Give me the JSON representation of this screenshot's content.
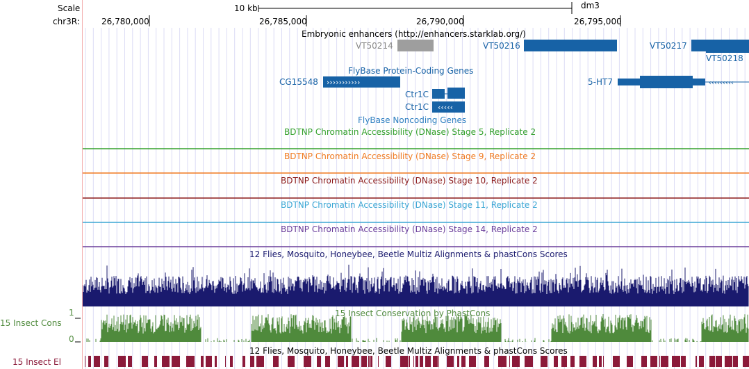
{
  "colors": {
    "gene_blue": "#1762a6",
    "enhancer_gray": "#9e9e9e",
    "stage5": "#33a02c",
    "stage9": "#f07a20",
    "stage10": "#8b1a1a",
    "stage11": "#3aa6d4",
    "stage14": "#6a3d9a",
    "multiz": "#1a1a6e",
    "phastcons": "#4f8a3c",
    "elements": "#8b1a3a",
    "grid": "#dcdcf5"
  },
  "ruler": {
    "scale_label": "Scale",
    "scale_value": "10 kb",
    "assembly": "dm3",
    "chrom_label": "chr3R:",
    "ticks": [
      "26,780,000",
      "26,785,000",
      "26,790,000",
      "26,795,000"
    ]
  },
  "tracks": {
    "enhancers": {
      "title": "Embryonic enhancers (http://enhancers.starklab.org/)",
      "items": [
        "VT50214",
        "VT50216",
        "VT50217",
        "VT50218"
      ]
    },
    "flybase_coding": {
      "title": "FlyBase Protein-Coding Genes",
      "genes": [
        "CG15548",
        "Ctr1C",
        "Ctr1C",
        "5-HT7"
      ]
    },
    "flybase_noncoding": {
      "title": "FlyBase Noncoding Genes"
    },
    "dnase": [
      {
        "title": "BDTNP Chromatin Accessibility (DNase) Stage 5, Replicate 2"
      },
      {
        "title": "BDTNP Chromatin Accessibility (DNase) Stage 9, Replicate 2"
      },
      {
        "title": "BDTNP Chromatin Accessibility (DNase) Stage 10, Replicate 2"
      },
      {
        "title": "BDTNP Chromatin Accessibility (DNase) Stage 11, Replicate 2"
      },
      {
        "title": "BDTNP Chromatin Accessibility (DNase) Stage 14, Replicate 2"
      }
    ],
    "multiz": {
      "title": "12 Flies, Mosquito, Honeybee, Beetle Multiz Alignments & phastCons Scores"
    },
    "phastcons": {
      "title": "15 Insect Conservation by PhastCons",
      "side_label": "15 Insect Cons",
      "y_max": "1",
      "y_min": "0"
    },
    "elements": {
      "title": "12 Flies, Mosquito, Honeybee, Beetle Multiz Alignments & phastCons Scores",
      "side_label": "15 Insect El"
    }
  }
}
